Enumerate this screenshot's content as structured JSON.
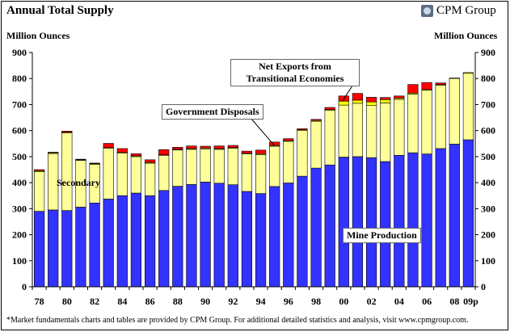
{
  "title": "Annual Total Supply",
  "brand": "CPM Group",
  "brand_icon": "cpm-logo-icon",
  "footnote": "*Market fundamentals charts and tables are provided by CPM Group. For additional detailed statistics and analysis, visit www.cpmgroup.com.",
  "chart_data": {
    "type": "bar",
    "stacked": true,
    "title": "Annual Total Supply",
    "ylabel": "Million Ounces",
    "ylabel_right": "Million Ounces",
    "ylim": [
      0,
      900
    ],
    "yticks": [
      0,
      100,
      200,
      300,
      400,
      500,
      600,
      700,
      800,
      900
    ],
    "categories": [
      "1978",
      "1979",
      "1980",
      "1981",
      "1982",
      "1983",
      "1984",
      "1985",
      "1986",
      "1987",
      "1988",
      "1989",
      "1990",
      "1991",
      "1992",
      "1993",
      "1994",
      "1995",
      "1996",
      "1997",
      "1998",
      "1999",
      "2000",
      "2001",
      "2002",
      "2003",
      "2004",
      "2005",
      "2006",
      "2007",
      "2008",
      "2009p"
    ],
    "xtick_labels": [
      "78",
      "80",
      "82",
      "84",
      "86",
      "88",
      "90",
      "92",
      "94",
      "96",
      "98",
      "00",
      "02",
      "04",
      "06",
      "08",
      "09p"
    ],
    "xtick_indices": [
      0,
      2,
      4,
      6,
      8,
      10,
      12,
      14,
      16,
      18,
      20,
      22,
      24,
      26,
      28,
      30,
      31
    ],
    "series": [
      {
        "name": "Mine Production",
        "color": "#3333ff",
        "values": [
          290,
          295,
          293,
          306,
          322,
          337,
          350,
          360,
          350,
          370,
          386,
          393,
          402,
          398,
          392,
          366,
          358,
          385,
          399,
          425,
          456,
          468,
          498,
          500,
          496,
          481,
          505,
          515,
          510,
          531,
          548,
          565
        ]
      },
      {
        "name": "Secondary",
        "color": "#ffff99",
        "values": [
          152,
          217,
          298,
          180,
          148,
          195,
          163,
          140,
          125,
          135,
          140,
          135,
          128,
          130,
          140,
          145,
          150,
          155,
          160,
          175,
          180,
          210,
          200,
          205,
          200,
          225,
          215,
          225,
          245,
          243,
          252,
          255
        ]
      },
      {
        "name": "Government Disposals",
        "color": "#ffff00",
        "values": [
          4,
          3,
          3,
          2,
          3,
          3,
          3,
          3,
          3,
          2,
          2,
          3,
          3,
          3,
          3,
          2,
          3,
          3,
          3,
          3,
          3,
          3,
          15,
          12,
          14,
          13,
          5,
          4,
          3,
          3,
          2,
          3
        ]
      },
      {
        "name": "Net Exports from Transitional Economies",
        "color": "#ff0000",
        "values": [
          4,
          2,
          4,
          2,
          2,
          16,
          15,
          8,
          10,
          20,
          8,
          10,
          7,
          10,
          8,
          8,
          14,
          13,
          7,
          4,
          4,
          8,
          20,
          26,
          18,
          8,
          8,
          33,
          27,
          6,
          0,
          0
        ]
      }
    ],
    "annotations": [
      "Secondary",
      "Mine Production",
      "Government Disposals",
      "Net Exports from\nTransitional Economies"
    ],
    "grid": false,
    "legend": "none"
  }
}
